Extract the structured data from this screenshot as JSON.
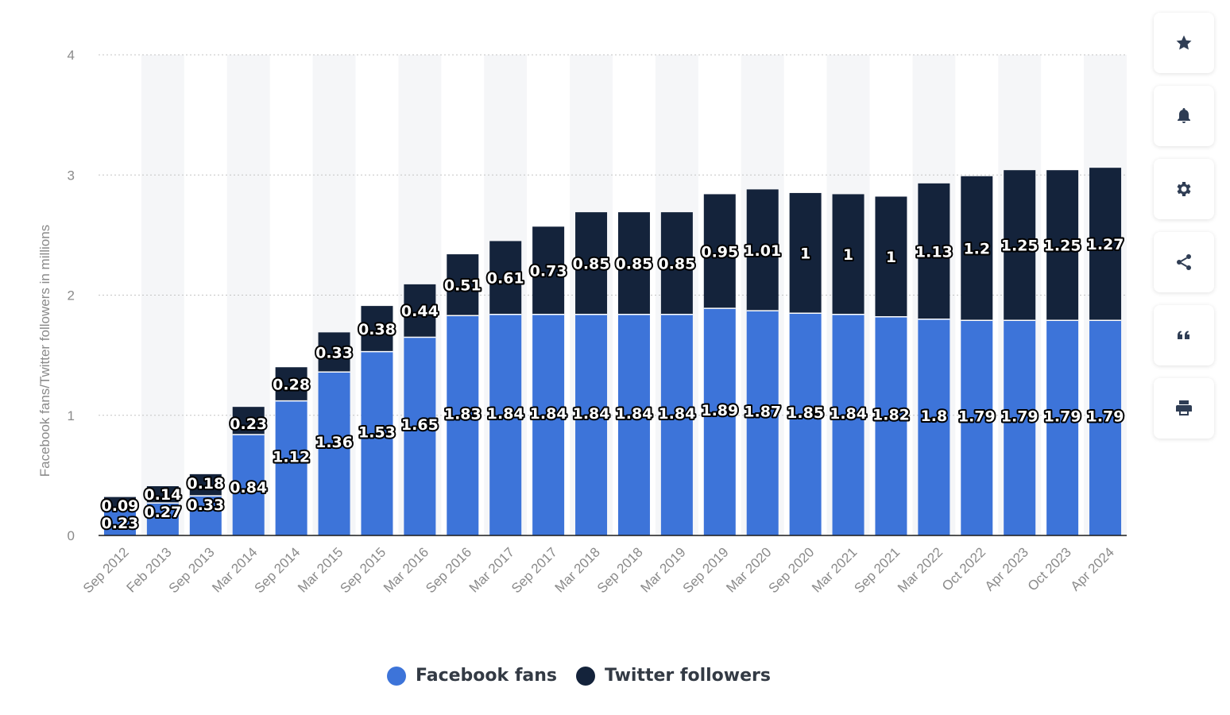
{
  "chart_data": {
    "type": "bar",
    "stacked": true,
    "categories": [
      "Sep 2012",
      "Feb 2013",
      "Sep 2013",
      "Mar 2014",
      "Sep 2014",
      "Mar 2015",
      "Sep 2015",
      "Mar 2016",
      "Sep 2016",
      "Mar 2017",
      "Sep 2017",
      "Mar 2018",
      "Sep 2018",
      "Mar 2019",
      "Sep 2019",
      "Mar 2020",
      "Sep 2020",
      "Mar 2021",
      "Sep 2021",
      "Mar 2022",
      "Oct 2022",
      "Apr 2023",
      "Oct 2023",
      "Apr 2024"
    ],
    "series": [
      {
        "name": "Facebook fans",
        "color": "#3d74d9",
        "values": [
          0.23,
          0.27,
          0.33,
          0.84,
          1.12,
          1.36,
          1.53,
          1.65,
          1.83,
          1.84,
          1.84,
          1.84,
          1.84,
          1.84,
          1.89,
          1.87,
          1.85,
          1.84,
          1.82,
          1.8,
          1.79,
          1.79,
          1.79,
          1.79
        ]
      },
      {
        "name": "Twitter followers",
        "color": "#14233b",
        "values": [
          0.09,
          0.14,
          0.18,
          0.23,
          0.28,
          0.33,
          0.38,
          0.44,
          0.51,
          0.61,
          0.73,
          0.85,
          0.85,
          0.85,
          0.95,
          1.01,
          1,
          1,
          1,
          1.13,
          1.2,
          1.25,
          1.25,
          1.27
        ]
      }
    ],
    "value_labels": {
      "series_0": [
        "0.23",
        "0.27",
        "0.33",
        "0.84",
        "1.12",
        "1.36",
        "1.53",
        "1.65",
        "1.83",
        "1.84",
        "1.84",
        "1.84",
        "1.84",
        "1.84",
        "1.89",
        "1.87",
        "1.85",
        "1.84",
        "1.82",
        "1.8",
        "1.79",
        "1.79",
        "1.79",
        "1.79"
      ],
      "series_1": [
        "0.09",
        "0.14",
        "0.18",
        "0.23",
        "0.28",
        "0.33",
        "0.38",
        "0.44",
        "0.51",
        "0.61",
        "0.73",
        "0.85",
        "0.85",
        "0.85",
        "0.95",
        "1.01",
        "1",
        "1",
        "1",
        "1.13",
        "1.2",
        "1.25",
        "1.25",
        "1.27"
      ]
    },
    "title": "",
    "xlabel": "",
    "ylabel": "Facebook fans/Twitter followers in millions",
    "ylim": [
      0,
      4
    ],
    "yticks": [
      0,
      1,
      2,
      3,
      4
    ],
    "ytick_labels": [
      "0",
      "1",
      "2",
      "3",
      "4"
    ],
    "grid": true,
    "legend_position": "bottom-center"
  },
  "legend": {
    "items": [
      {
        "label": "Facebook fans",
        "color": "#3d74d9"
      },
      {
        "label": "Twitter followers",
        "color": "#14233b"
      }
    ]
  },
  "toolbar": {
    "buttons": [
      {
        "icon": "star-icon"
      },
      {
        "icon": "bell-icon"
      },
      {
        "icon": "gear-icon"
      },
      {
        "icon": "share-icon"
      },
      {
        "icon": "quote-icon"
      },
      {
        "icon": "printer-icon"
      }
    ],
    "icon_color": "#2f3d54"
  }
}
